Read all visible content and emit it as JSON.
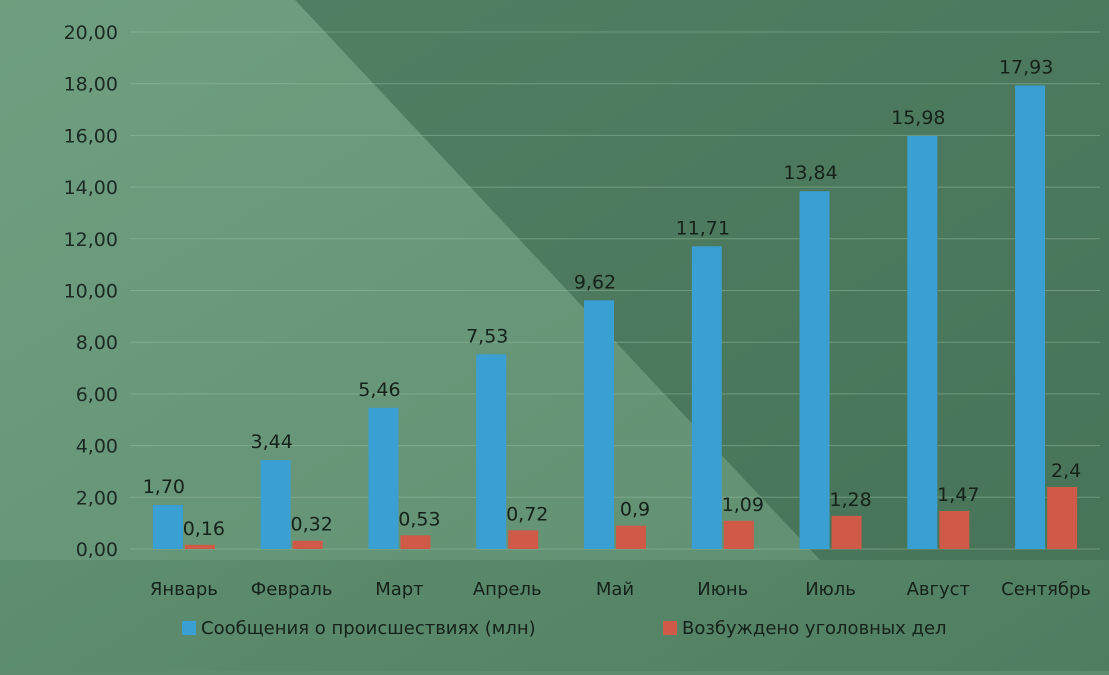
{
  "chart_data": {
    "type": "bar",
    "title": "",
    "xlabel": "",
    "ylabel": "",
    "categories": [
      "Январь",
      "Февраль",
      "Март",
      "Апрель",
      "Май",
      "Июнь",
      "Июль",
      "Август",
      "Сентябрь"
    ],
    "series": [
      {
        "name": "Сообщения о происшествиях (млн)",
        "color": "#3a9fd2",
        "values": [
          1.7,
          3.44,
          5.46,
          7.53,
          9.62,
          11.71,
          13.84,
          15.98,
          17.93
        ],
        "labels": [
          "1,70",
          "3,44",
          "5,46",
          "7,53",
          "9,62",
          "11,71",
          "13,84",
          "15,98",
          "17,93"
        ]
      },
      {
        "name": "Возбуждено уголовных дел",
        "color": "#cf5a47",
        "values": [
          0.16,
          0.32,
          0.53,
          0.72,
          0.9,
          1.09,
          1.28,
          1.47,
          2.4
        ],
        "labels": [
          "0,16",
          "0,32",
          "0,53",
          "0,72",
          "0,9",
          "1,09",
          "1,28",
          "1,47",
          "2,4"
        ]
      }
    ],
    "ylim": [
      0,
      20
    ],
    "yticks": [
      "0,00",
      "2,00",
      "4,00",
      "6,00",
      "8,00",
      "10,00",
      "12,00",
      "14,00",
      "16,00",
      "18,00",
      "20,00"
    ],
    "grid": true,
    "legend_position": "bottom"
  }
}
